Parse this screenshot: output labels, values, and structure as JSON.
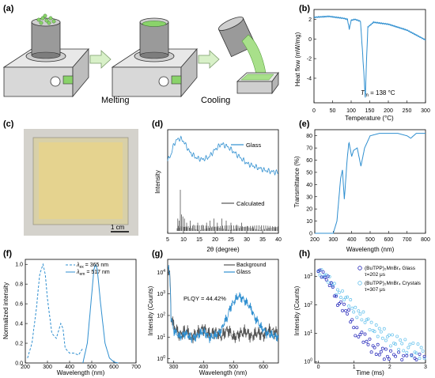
{
  "panels": {
    "a": {
      "label": "(a)",
      "step1": "Melting",
      "step2": "Cooling"
    },
    "b": {
      "label": "(b)",
      "xlabel": "Temperature (°C)",
      "ylabel": "Heat flow (mW/mg)",
      "xticks": [
        "0",
        "50",
        "100",
        "150",
        "200",
        "250",
        "300"
      ],
      "yticks": [
        "2",
        "0",
        "-2",
        "-4"
      ],
      "annotation": {
        "T": "T",
        "sub": "m",
        "text": " = 138 °C"
      }
    },
    "c": {
      "label": "(c)",
      "scalebar": "1 cm"
    },
    "d": {
      "label": "(d)",
      "xlabel": "2θ (degree)",
      "ylabel": "Intensity",
      "xticks": [
        "5",
        "10",
        "15",
        "20",
        "25",
        "30",
        "35",
        "40"
      ],
      "legend": [
        "Glass",
        "Calculated"
      ]
    },
    "e": {
      "label": "(e)",
      "xlabel": "Wavelength (nm)",
      "ylabel": "Transmittance (%)",
      "xticks": [
        "200",
        "300",
        "400",
        "500",
        "600",
        "700",
        "800"
      ],
      "yticks": [
        "0",
        "10",
        "20",
        "30",
        "40",
        "50",
        "60",
        "70",
        "80"
      ]
    },
    "f": {
      "label": "(f)",
      "xlabel": "Wavelength (nm)",
      "ylabel": "Normalized intensity",
      "xticks": [
        "200",
        "300",
        "400",
        "500",
        "600",
        "700"
      ],
      "yticks": [
        "0.0",
        "0.2",
        "0.4",
        "0.6",
        "0.8",
        "1.0"
      ],
      "legend": [
        {
          "sym": "λ",
          "sub": "ex",
          "text": " = 365 nm"
        },
        {
          "sym": "λ",
          "sub": "em",
          "text": " = 517 nm"
        }
      ]
    },
    "g": {
      "label": "(g)",
      "xlabel": "Wavelength (nm)",
      "ylabel": "Intensity (Counts)",
      "xticks": [
        "300",
        "400",
        "500",
        "600"
      ],
      "yticks": [
        {
          "b": "10",
          "e": "4"
        },
        {
          "b": "10",
          "e": "3"
        },
        {
          "b": "10",
          "e": "2"
        },
        {
          "b": "10",
          "e": "1"
        },
        {
          "b": "10",
          "e": "0"
        }
      ],
      "legend": [
        "Background",
        "Glass"
      ],
      "annotation": "PLQY = 44.42%"
    },
    "h": {
      "label": "(h)",
      "xlabel": "Time (ms)",
      "ylabel": "Intensity (Counts)",
      "xticks": [
        "0",
        "1",
        "2",
        "3"
      ],
      "yticks": [
        {
          "b": "10",
          "e": "3"
        },
        {
          "b": "10",
          "e": "2"
        },
        {
          "b": "10",
          "e": "1"
        },
        {
          "b": "10",
          "e": "0"
        }
      ],
      "legend": [
        {
          "text": "(BuTPP)₂MnBr₄ Glass",
          "tau": "τ=202 μs"
        },
        {
          "text": "(BuTPP)₂MnBr₄ Crystals",
          "tau": "τ=307 μs"
        }
      ]
    }
  },
  "colors": {
    "blue": "#2f8fd0",
    "dark": "#555555",
    "navy": "#1f22b8",
    "light": "#62c0ec",
    "green": "#8ad36a"
  },
  "chart_data": [
    {
      "panel": "b",
      "type": "line",
      "xlim": [
        0,
        300
      ],
      "ylim": [
        -6.5,
        3
      ],
      "x": [
        0,
        40,
        80,
        90,
        95,
        100,
        110,
        125,
        130,
        135,
        138,
        141,
        145,
        160,
        200,
        250,
        300
      ],
      "values": [
        2.2,
        2.3,
        2.1,
        2.0,
        1.0,
        1.9,
        2.0,
        1.8,
        -1.0,
        -4.0,
        -6.0,
        -2.5,
        1.2,
        1.7,
        1.5,
        0.9,
        -0.1
      ]
    },
    {
      "panel": "d",
      "type": "line",
      "xlim": [
        5,
        40
      ],
      "series": [
        {
          "name": "Glass",
          "x": [
            5,
            6,
            7,
            8,
            9,
            10,
            11,
            12,
            14,
            16,
            18,
            20,
            22,
            24,
            26,
            28,
            30,
            33,
            36,
            40
          ],
          "values": [
            0.6,
            0.7,
            0.9,
            0.98,
            1.0,
            0.95,
            0.85,
            0.75,
            0.65,
            0.62,
            0.66,
            0.8,
            0.9,
            0.85,
            0.75,
            0.65,
            0.55,
            0.48,
            0.42,
            0.38
          ]
        },
        {
          "name": "Calculated",
          "x": [
            8.2,
            8.6,
            9.0,
            9.4,
            9.8,
            10.3,
            11.0,
            12.1,
            13.2,
            14.5,
            16.0,
            17.3,
            18.4,
            19.6,
            20.7,
            22.1,
            23.5,
            25.0,
            26.8,
            28.4,
            30.1,
            32.0,
            34.5,
            37.0,
            39.0
          ],
          "values": [
            0.3,
            0.25,
            1.0,
            0.4,
            0.35,
            0.3,
            0.2,
            0.25,
            0.15,
            0.2,
            0.15,
            0.2,
            0.25,
            0.3,
            0.2,
            0.3,
            0.25,
            0.2,
            0.15,
            0.2,
            0.12,
            0.1,
            0.1,
            0.08,
            0.07
          ]
        }
      ]
    },
    {
      "panel": "e",
      "type": "line",
      "xlim": [
        200,
        800
      ],
      "ylim": [
        0,
        85
      ],
      "x": [
        200,
        300,
        320,
        340,
        350,
        360,
        365,
        375,
        385,
        400,
        410,
        430,
        450,
        470,
        500,
        550,
        600,
        650,
        700,
        720,
        750,
        800
      ],
      "values": [
        0,
        0,
        10,
        45,
        52,
        28,
        38,
        60,
        75,
        63,
        68,
        70,
        55,
        70,
        80,
        82,
        82,
        82,
        80,
        78,
        82,
        82
      ]
    },
    {
      "panel": "f",
      "type": "line",
      "xlim": [
        200,
        700
      ],
      "ylim": [
        0,
        1.05
      ],
      "series": [
        {
          "name": "λex = 365 nm",
          "x": [
            210,
            230,
            250,
            265,
            280,
            290,
            300,
            320,
            340,
            360,
            370,
            380,
            400,
            420,
            440,
            460
          ],
          "values": [
            0.05,
            0.2,
            0.55,
            0.9,
            1.0,
            0.9,
            0.65,
            0.3,
            0.25,
            0.4,
            0.35,
            0.15,
            0.1,
            0.1,
            0.08,
            0.15
          ]
        },
        {
          "name": "λem = 517 nm",
          "x": [
            460,
            480,
            500,
            510,
            517,
            525,
            540,
            560,
            580,
            600,
            620
          ],
          "values": [
            0.0,
            0.2,
            0.7,
            0.95,
            1.0,
            0.95,
            0.6,
            0.2,
            0.05,
            0.01,
            0.0
          ]
        }
      ]
    },
    {
      "panel": "g",
      "type": "line",
      "xlim": [
        280,
        650
      ],
      "log_y": true,
      "series": [
        {
          "name": "Background",
          "x": [
            280,
            290,
            300,
            320,
            340,
            360,
            380,
            400,
            420,
            440,
            460,
            480,
            500,
            520,
            540,
            560,
            580,
            600,
            620,
            650
          ],
          "values": [
            20000,
            100,
            30,
            12,
            20,
            10,
            15,
            25,
            12,
            18,
            10,
            22,
            9,
            14,
            18,
            10,
            16,
            12,
            20,
            15
          ]
        },
        {
          "name": "Glass",
          "x": [
            280,
            290,
            300,
            320,
            340,
            360,
            380,
            400,
            420,
            440,
            460,
            480,
            500,
            517,
            530,
            550,
            570,
            590,
            610,
            630,
            650
          ],
          "values": [
            20000,
            80,
            20,
            10,
            15,
            8,
            12,
            18,
            9,
            12,
            20,
            80,
            400,
            800,
            600,
            300,
            80,
            30,
            15,
            12,
            10
          ]
        }
      ]
    },
    {
      "panel": "h",
      "type": "scatter",
      "xlim": [
        -0.1,
        3
      ],
      "log_y": true,
      "series": [
        {
          "name": "(BuTPP)₂MnBr₄ Glass",
          "tau_ms": 0.202,
          "x": [
            0,
            0.5,
            1.0,
            1.5,
            2.0,
            2.5,
            3.0
          ],
          "values": [
            1500,
            130,
            12,
            3,
            1.5,
            1,
            1
          ]
        },
        {
          "name": "(BuTPP)₂MnBr₄ Crystals",
          "tau_ms": 0.307,
          "x": [
            0,
            0.5,
            1.0,
            1.5,
            2.0,
            2.5,
            3.0
          ],
          "values": [
            1500,
            300,
            60,
            15,
            6,
            3,
            2
          ]
        }
      ]
    }
  ]
}
